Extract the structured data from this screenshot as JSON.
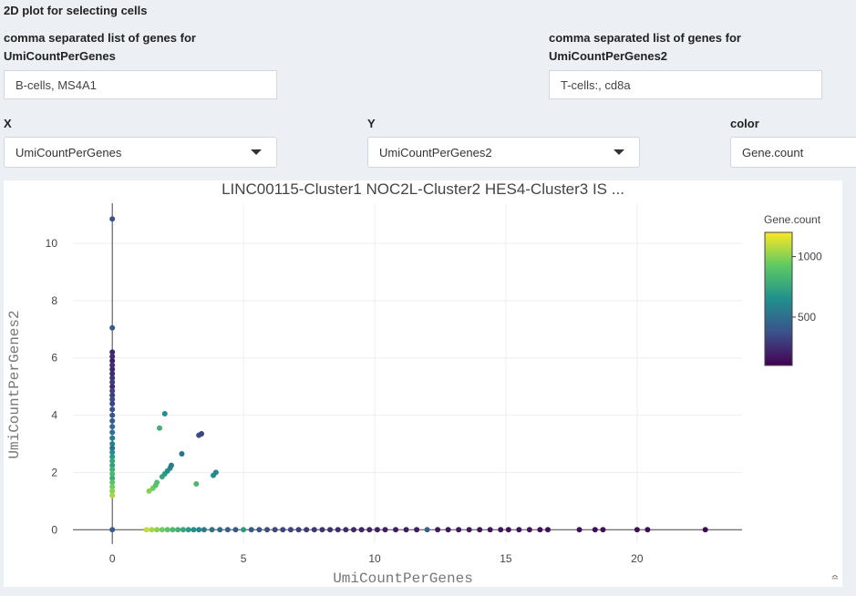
{
  "section": {
    "title": "2D plot for selecting cells"
  },
  "genes1": {
    "label_line1": "comma separated list of genes for",
    "label_line2": "UmiCountPerGenes",
    "value": "B-cells, MS4A1"
  },
  "genes2": {
    "label_line1": "comma separated list of genes for",
    "label_line2": "UmiCountPerGenes2",
    "value": "T-cells:, cd8a"
  },
  "selectors": {
    "x": {
      "label": "X",
      "value": "UmiCountPerGenes"
    },
    "y": {
      "label": "Y",
      "value": "UmiCountPerGenes2"
    },
    "color": {
      "label": "color",
      "value": "Gene.count"
    }
  },
  "chart_data": {
    "type": "scatter",
    "title": "LINC00115-Cluster1 NOC2L-Cluster2 HES4-Cluster3 IS ...",
    "xlabel": "UmiCountPerGenes",
    "ylabel": "UmiCountPerGenes2",
    "xlim": [
      -1.5,
      24
    ],
    "ylim": [
      -0.5,
      11.4
    ],
    "xticks": [
      0,
      5,
      10,
      15,
      20
    ],
    "yticks": [
      0,
      2,
      4,
      6,
      8,
      10
    ],
    "grid": true,
    "colorbar": {
      "title": "Gene.count",
      "ticks": [
        500,
        1000
      ],
      "range": [
        100,
        1200
      ],
      "colors": [
        "#440154",
        "#3b528b",
        "#21908d",
        "#5dc963",
        "#fde725"
      ],
      "placement": "right"
    },
    "points": [
      {
        "x": 0,
        "y": 10.85,
        "c": 380
      },
      {
        "x": 0,
        "y": 7.05,
        "c": 420
      },
      {
        "x": 0,
        "y": 6.2,
        "c": 220
      },
      {
        "x": 0,
        "y": 6.05,
        "c": 250
      },
      {
        "x": 0,
        "y": 5.9,
        "c": 210
      },
      {
        "x": 0,
        "y": 5.75,
        "c": 260
      },
      {
        "x": 0,
        "y": 5.6,
        "c": 230
      },
      {
        "x": 0,
        "y": 5.45,
        "c": 240
      },
      {
        "x": 0,
        "y": 5.3,
        "c": 280
      },
      {
        "x": 0,
        "y": 5.15,
        "c": 300
      },
      {
        "x": 0,
        "y": 5.0,
        "c": 250
      },
      {
        "x": 0,
        "y": 4.85,
        "c": 320
      },
      {
        "x": 0,
        "y": 4.7,
        "c": 300
      },
      {
        "x": 0,
        "y": 4.55,
        "c": 350
      },
      {
        "x": 0,
        "y": 4.4,
        "c": 330
      },
      {
        "x": 0,
        "y": 4.2,
        "c": 370
      },
      {
        "x": 0,
        "y": 4.0,
        "c": 400
      },
      {
        "x": 0,
        "y": 3.8,
        "c": 420
      },
      {
        "x": 0,
        "y": 3.6,
        "c": 480
      },
      {
        "x": 0,
        "y": 3.4,
        "c": 520
      },
      {
        "x": 0,
        "y": 3.2,
        "c": 560
      },
      {
        "x": 0,
        "y": 3.0,
        "c": 600
      },
      {
        "x": 0,
        "y": 2.85,
        "c": 500
      },
      {
        "x": 0,
        "y": 2.7,
        "c": 650
      },
      {
        "x": 0,
        "y": 2.55,
        "c": 700
      },
      {
        "x": 0,
        "y": 2.4,
        "c": 760
      },
      {
        "x": 0,
        "y": 2.25,
        "c": 720
      },
      {
        "x": 0,
        "y": 2.1,
        "c": 800
      },
      {
        "x": 0,
        "y": 1.95,
        "c": 850
      },
      {
        "x": 0,
        "y": 1.8,
        "c": 780
      },
      {
        "x": 0,
        "y": 1.65,
        "c": 900
      },
      {
        "x": 0,
        "y": 1.5,
        "c": 950
      },
      {
        "x": 0,
        "y": 1.35,
        "c": 1000
      },
      {
        "x": 0,
        "y": 1.2,
        "c": 1050
      },
      {
        "x": 0,
        "y": 0,
        "c": 420
      },
      {
        "x": 1.4,
        "y": 1.35,
        "c": 1000
      },
      {
        "x": 1.55,
        "y": 1.45,
        "c": 950
      },
      {
        "x": 1.65,
        "y": 1.55,
        "c": 900
      },
      {
        "x": 1.7,
        "y": 1.65,
        "c": 880
      },
      {
        "x": 1.8,
        "y": 3.55,
        "c": 800
      },
      {
        "x": 2.0,
        "y": 4.05,
        "c": 650
      },
      {
        "x": 1.9,
        "y": 1.85,
        "c": 750
      },
      {
        "x": 2.0,
        "y": 1.95,
        "c": 700
      },
      {
        "x": 2.1,
        "y": 2.05,
        "c": 650
      },
      {
        "x": 2.2,
        "y": 2.15,
        "c": 600
      },
      {
        "x": 2.25,
        "y": 2.25,
        "c": 560
      },
      {
        "x": 2.65,
        "y": 2.65,
        "c": 500
      },
      {
        "x": 3.3,
        "y": 3.3,
        "c": 350
      },
      {
        "x": 3.4,
        "y": 3.35,
        "c": 330
      },
      {
        "x": 3.2,
        "y": 1.6,
        "c": 850
      },
      {
        "x": 3.85,
        "y": 1.9,
        "c": 650
      },
      {
        "x": 3.95,
        "y": 2.0,
        "c": 600
      },
      {
        "x": 1.3,
        "y": 0,
        "c": 1100
      },
      {
        "x": 1.5,
        "y": 0,
        "c": 1050
      },
      {
        "x": 1.7,
        "y": 0,
        "c": 1000
      },
      {
        "x": 1.9,
        "y": 0,
        "c": 950
      },
      {
        "x": 2.1,
        "y": 0,
        "c": 900
      },
      {
        "x": 2.3,
        "y": 0,
        "c": 850
      },
      {
        "x": 2.5,
        "y": 0,
        "c": 800
      },
      {
        "x": 2.7,
        "y": 0,
        "c": 750
      },
      {
        "x": 2.9,
        "y": 0,
        "c": 700
      },
      {
        "x": 3.1,
        "y": 0,
        "c": 650
      },
      {
        "x": 3.3,
        "y": 0,
        "c": 600
      },
      {
        "x": 3.5,
        "y": 0,
        "c": 560
      },
      {
        "x": 3.8,
        "y": 0,
        "c": 520
      },
      {
        "x": 4.1,
        "y": 0,
        "c": 480
      },
      {
        "x": 4.4,
        "y": 0,
        "c": 450
      },
      {
        "x": 4.7,
        "y": 0,
        "c": 420
      },
      {
        "x": 5.0,
        "y": 0,
        "c": 700
      },
      {
        "x": 5.3,
        "y": 0,
        "c": 400
      },
      {
        "x": 5.6,
        "y": 0,
        "c": 380
      },
      {
        "x": 5.9,
        "y": 0,
        "c": 360
      },
      {
        "x": 6.2,
        "y": 0,
        "c": 340
      },
      {
        "x": 6.5,
        "y": 0,
        "c": 330
      },
      {
        "x": 6.8,
        "y": 0,
        "c": 320
      },
      {
        "x": 7.1,
        "y": 0,
        "c": 300
      },
      {
        "x": 7.4,
        "y": 0,
        "c": 290
      },
      {
        "x": 7.7,
        "y": 0,
        "c": 280
      },
      {
        "x": 8.0,
        "y": 0,
        "c": 270
      },
      {
        "x": 8.3,
        "y": 0,
        "c": 260
      },
      {
        "x": 8.6,
        "y": 0,
        "c": 250
      },
      {
        "x": 8.9,
        "y": 0,
        "c": 240
      },
      {
        "x": 9.2,
        "y": 0,
        "c": 230
      },
      {
        "x": 9.5,
        "y": 0,
        "c": 220
      },
      {
        "x": 9.8,
        "y": 0,
        "c": 210
      },
      {
        "x": 10.1,
        "y": 0,
        "c": 200
      },
      {
        "x": 10.4,
        "y": 0,
        "c": 200
      },
      {
        "x": 10.8,
        "y": 0,
        "c": 190
      },
      {
        "x": 11.2,
        "y": 0,
        "c": 190
      },
      {
        "x": 11.6,
        "y": 0,
        "c": 180
      },
      {
        "x": 12.0,
        "y": 0,
        "c": 450
      },
      {
        "x": 12.4,
        "y": 0,
        "c": 180
      },
      {
        "x": 12.8,
        "y": 0,
        "c": 170
      },
      {
        "x": 13.2,
        "y": 0,
        "c": 170
      },
      {
        "x": 13.6,
        "y": 0,
        "c": 170
      },
      {
        "x": 14.0,
        "y": 0,
        "c": 160
      },
      {
        "x": 14.4,
        "y": 0,
        "c": 160
      },
      {
        "x": 14.8,
        "y": 0,
        "c": 160
      },
      {
        "x": 15.1,
        "y": 0,
        "c": 150
      },
      {
        "x": 15.5,
        "y": 0,
        "c": 150
      },
      {
        "x": 15.9,
        "y": 0,
        "c": 150
      },
      {
        "x": 16.3,
        "y": 0,
        "c": 150
      },
      {
        "x": 16.6,
        "y": 0,
        "c": 150
      },
      {
        "x": 17.8,
        "y": 0,
        "c": 140
      },
      {
        "x": 18.4,
        "y": 0,
        "c": 140
      },
      {
        "x": 18.7,
        "y": 0,
        "c": 140
      },
      {
        "x": 20.0,
        "y": 0,
        "c": 130
      },
      {
        "x": 20.4,
        "y": 0,
        "c": 130
      },
      {
        "x": 22.6,
        "y": 0,
        "c": 120
      }
    ]
  }
}
